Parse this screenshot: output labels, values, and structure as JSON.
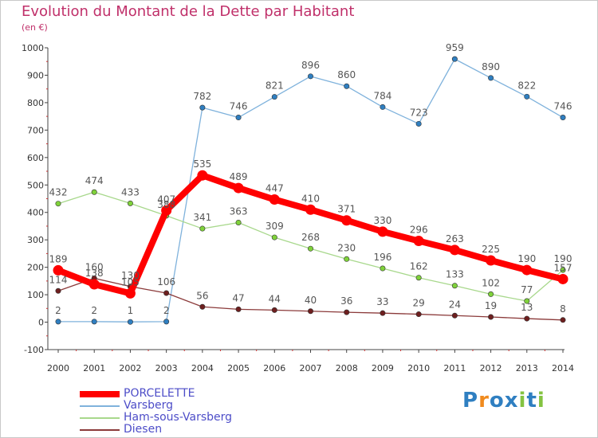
{
  "title": "Evolution du Montant de la Dette par Habitant",
  "subtitle": "(en €)",
  "brand": {
    "letters": [
      "P",
      "r",
      "o",
      "x",
      "i",
      "t",
      "i"
    ],
    "colors": [
      "#2f7fc1",
      "#f08a1d",
      "#2f7fc1",
      "#2f7fc1",
      "#84c341",
      "#2f7fc1",
      "#84c341"
    ]
  },
  "chart_data": {
    "type": "line",
    "x": [
      "2000",
      "2001",
      "2002",
      "2003",
      "2004",
      "2005",
      "2006",
      "2007",
      "2008",
      "2009",
      "2010",
      "2011",
      "2012",
      "2013",
      "2014"
    ],
    "ylim": [
      -100,
      1000
    ],
    "yticks": [
      "-100",
      "0",
      "100",
      "200",
      "300",
      "400",
      "500",
      "600",
      "700",
      "800",
      "900",
      "1000"
    ],
    "grid": false,
    "legend_position": "bottom-left",
    "series": [
      {
        "name": "PORCELETTE",
        "color": "#ff0000",
        "values": [
          189,
          138,
          105,
          407,
          535,
          489,
          447,
          410,
          371,
          330,
          296,
          263,
          225,
          190,
          157
        ],
        "labels": [
          "189",
          "138",
          "105",
          "407",
          "535",
          "489",
          "447",
          "410",
          "371",
          "330",
          "296",
          "263",
          "225",
          "190",
          "157"
        ]
      },
      {
        "name": "Varsberg",
        "color": "#7fb2dc",
        "marker": "#2f7fc1",
        "values": [
          2,
          2,
          1,
          2,
          782,
          746,
          821,
          896,
          860,
          784,
          723,
          959,
          890,
          822,
          746
        ],
        "labels": [
          "2",
          "2",
          "1",
          "2",
          "782",
          "746",
          "821",
          "896",
          "860",
          "784",
          "723",
          "959",
          "890",
          "822",
          "746"
        ]
      },
      {
        "name": "Ham-sous-Varsberg",
        "color": "#a8d88c",
        "marker": "#7fd23a",
        "values": [
          432,
          474,
          433,
          388,
          341,
          363,
          309,
          268,
          230,
          196,
          162,
          133,
          102,
          77,
          190
        ],
        "labels": [
          "432",
          "474",
          "433",
          "388",
          "341",
          "363",
          "309",
          "268",
          "230",
          "196",
          "162",
          "133",
          "102",
          "77",
          "190"
        ]
      },
      {
        "name": "Diesen",
        "color": "#8b3a3a",
        "marker": "#6e1f1f",
        "values": [
          114,
          160,
          130,
          106,
          56,
          47,
          44,
          40,
          36,
          33,
          29,
          24,
          19,
          13,
          8
        ],
        "labels": [
          "114",
          "160",
          "130",
          "106",
          "56",
          "47",
          "44",
          "40",
          "36",
          "33",
          "29",
          "24",
          "19",
          "13",
          "8"
        ]
      }
    ]
  }
}
